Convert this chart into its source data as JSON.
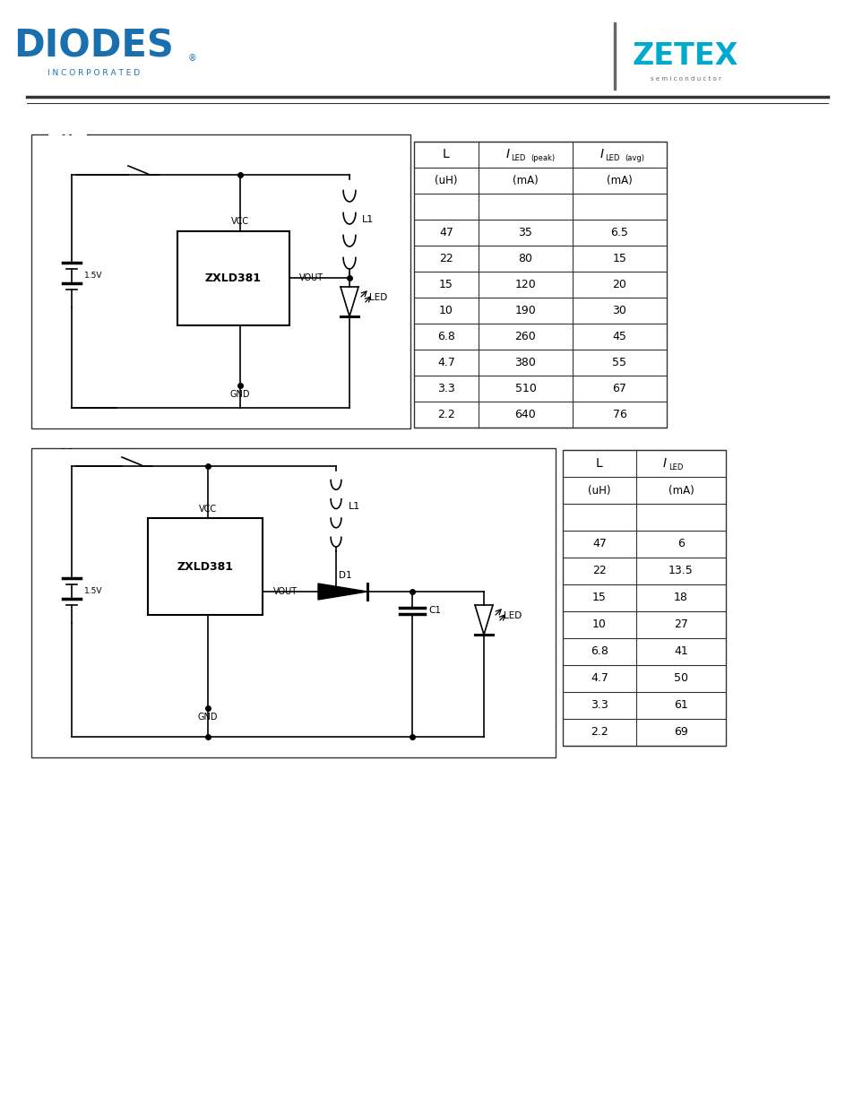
{
  "page_bg": "#ffffff",
  "table1": {
    "rows": [
      [
        "47",
        "35",
        "6.5"
      ],
      [
        "22",
        "80",
        "15"
      ],
      [
        "15",
        "120",
        "20"
      ],
      [
        "10",
        "190",
        "30"
      ],
      [
        "6.8",
        "260",
        "45"
      ],
      [
        "4.7",
        "380",
        "55"
      ],
      [
        "3.3",
        "510",
        "67"
      ],
      [
        "2.2",
        "640",
        "76"
      ]
    ]
  },
  "table2": {
    "rows": [
      [
        "47",
        "6"
      ],
      [
        "22",
        "13.5"
      ],
      [
        "15",
        "18"
      ],
      [
        "10",
        "27"
      ],
      [
        "6.8",
        "41"
      ],
      [
        "4.7",
        "50"
      ],
      [
        "3.3",
        "61"
      ],
      [
        "2.2",
        "69"
      ]
    ]
  },
  "diodes_blue": "#1a6faf",
  "zetex_cyan": "#00aacc",
  "dark_gray": "#333333",
  "black": "#000000",
  "white": "#ffffff"
}
